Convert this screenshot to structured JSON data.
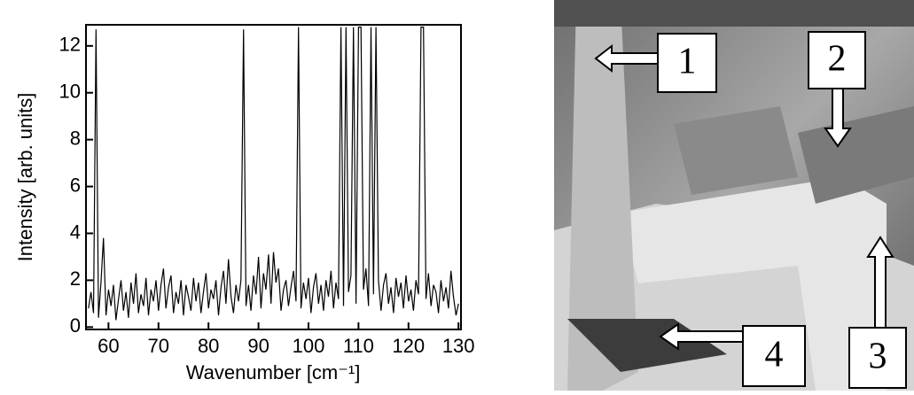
{
  "chart_data": {
    "type": "line",
    "color": "#000000",
    "x_label": "Wavenumber [cm⁻¹]",
    "y_label": "Intensity [arb. units]",
    "xlim": [
      55.5,
      130.5
    ],
    "ylim": [
      -0.1,
      12.9
    ],
    "xticks": [
      60,
      70,
      80,
      90,
      100,
      110,
      120,
      130
    ],
    "yticks": [
      0,
      2,
      4,
      6,
      8,
      10,
      12
    ],
    "x": [
      56,
      56.5,
      57,
      57.5,
      58,
      58.5,
      59,
      59.5,
      60,
      60.5,
      61,
      61.5,
      62,
      62.5,
      63,
      63.5,
      64,
      64.5,
      65,
      65.5,
      66,
      66.5,
      67,
      67.5,
      68,
      68.5,
      69,
      69.5,
      70,
      70.5,
      71,
      71.5,
      72,
      72.5,
      73,
      73.5,
      74,
      74.5,
      75,
      75.5,
      76,
      76.5,
      77,
      77.5,
      78,
      78.5,
      79,
      79.5,
      80,
      80.5,
      81,
      81.5,
      82,
      82.5,
      83,
      83.5,
      84,
      84.5,
      85,
      85.5,
      86,
      86.5,
      87,
      87.5,
      88,
      88.5,
      89,
      89.5,
      90,
      90.5,
      91,
      91.5,
      92,
      92.5,
      93,
      93.5,
      94,
      94.5,
      95,
      95.5,
      96,
      96.5,
      97,
      97.5,
      98,
      98.5,
      99,
      99.5,
      100,
      100.5,
      101,
      101.5,
      102,
      102.5,
      103,
      103.5,
      104,
      104.5,
      105,
      105.5,
      106,
      106.5,
      107,
      107.5,
      108,
      108.5,
      109,
      109.5,
      110,
      110.5,
      111,
      111.5,
      112,
      112.5,
      113,
      113.5,
      114,
      114.5,
      115,
      115.5,
      116,
      116.5,
      117,
      117.5,
      118,
      118.5,
      119,
      119.5,
      120,
      120.5,
      121,
      121.5,
      122,
      122.5,
      123,
      123.5,
      124,
      124.5,
      125,
      125.5,
      126,
      126.5,
      127,
      127.5,
      128,
      128.5,
      129,
      129.5,
      130
    ],
    "values": [
      0.8,
      1.5,
      0.6,
      12.7,
      0.4,
      1.9,
      3.8,
      0.5,
      1.6,
      0.9,
      1.8,
      0.3,
      1.2,
      2.0,
      0.7,
      1.5,
      0.4,
      1.9,
      1.0,
      2.3,
      0.6,
      1.4,
      0.9,
      2.1,
      0.5,
      1.6,
      1.1,
      2.0,
      0.7,
      1.8,
      2.5,
      0.8,
      1.7,
      2.2,
      0.6,
      1.5,
      1.0,
      2.0,
      0.5,
      1.8,
      1.3,
      0.7,
      2.1,
      1.1,
      1.9,
      0.6,
      1.5,
      2.3,
      0.8,
      1.6,
      1.2,
      2.0,
      0.5,
      1.7,
      2.4,
      1.0,
      2.9,
      1.3,
      0.6,
      1.8,
      1.1,
      2.0,
      12.7,
      0.9,
      1.8,
      0.7,
      2.2,
      1.4,
      3.0,
      0.8,
      2.3,
      1.6,
      3.1,
      1.0,
      3.2,
      1.9,
      2.5,
      0.7,
      1.6,
      2.0,
      0.9,
      1.7,
      2.4,
      1.1,
      12.8,
      0.8,
      1.9,
      1.2,
      2.1,
      0.6,
      1.7,
      2.3,
      1.0,
      1.8,
      0.7,
      2.0,
      1.3,
      2.4,
      0.8,
      1.9,
      1.2,
      12.8,
      0.9,
      12.8,
      1.5,
      2.2,
      12.8,
      1.0,
      12.8,
      12.8,
      1.6,
      2.5,
      0.9,
      12.8,
      1.4,
      12.8,
      2.0,
      0.7,
      1.8,
      2.3,
      1.0,
      1.7,
      0.6,
      2.1,
      1.3,
      1.9,
      0.8,
      2.2,
      1.1,
      1.6,
      0.7,
      2.0,
      1.4,
      12.8,
      12.8,
      1.2,
      2.3,
      0.9,
      1.8,
      1.5,
      0.6,
      2.0,
      1.1,
      1.7,
      0.8,
      2.4,
      1.3,
      0.5,
      1.0
    ]
  },
  "photo": {
    "labels": [
      "1",
      "2",
      "3",
      "4"
    ]
  }
}
